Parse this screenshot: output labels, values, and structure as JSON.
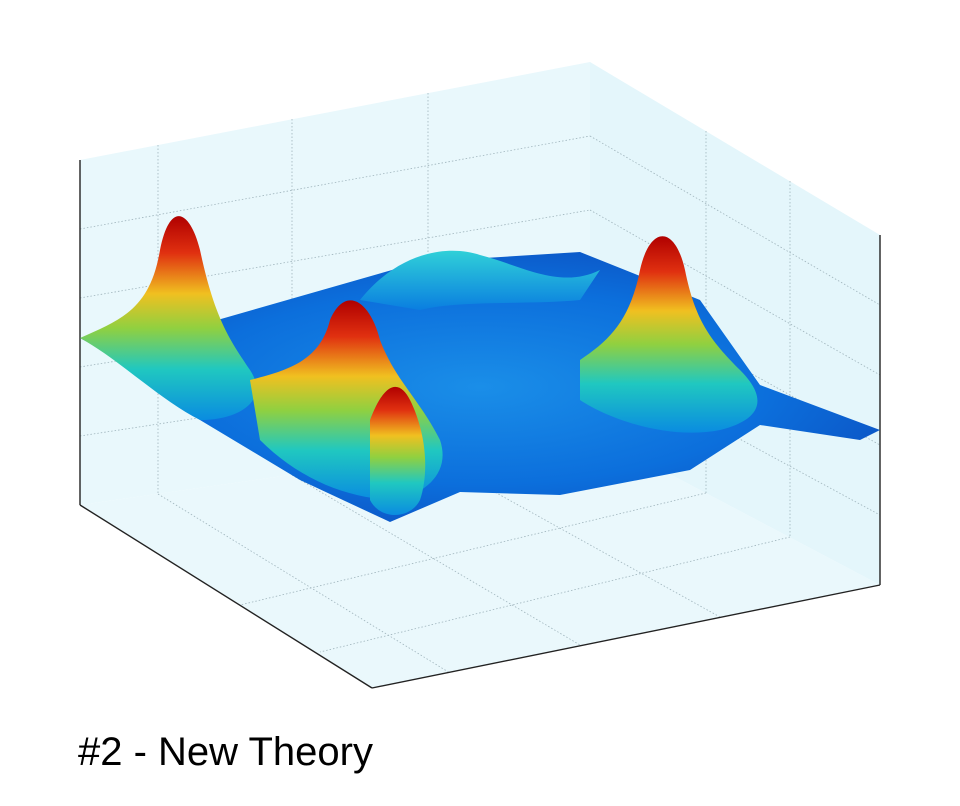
{
  "caption": "#2 - New Theory"
}
